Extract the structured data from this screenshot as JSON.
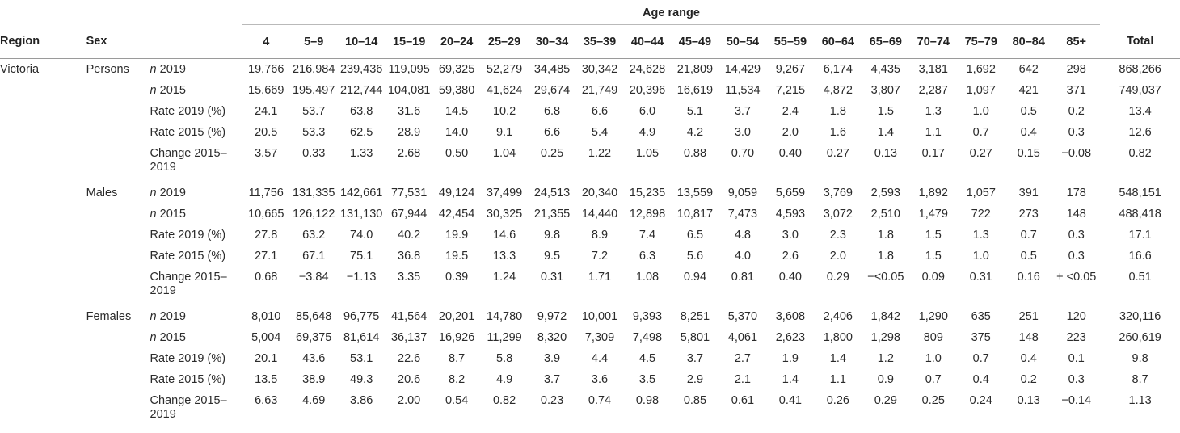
{
  "header": {
    "region": "Region",
    "sex": "Sex",
    "age_range": "Age range",
    "age_groups": [
      "4",
      "5–9",
      "10–14",
      "15–19",
      "20–24",
      "25–29",
      "30–34",
      "35–39",
      "40–44",
      "45–49",
      "50–54",
      "55–59",
      "60–64",
      "65–69",
      "70–74",
      "75–79",
      "80–84",
      "85+"
    ],
    "total": "Total"
  },
  "rows": [
    {
      "region": "Victoria",
      "sex": "Persons",
      "label_prefix": "n",
      "label": " 2019",
      "values": [
        "19,766",
        "216,984",
        "239,436",
        "119,095",
        "69,325",
        "52,279",
        "34,485",
        "30,342",
        "24,628",
        "21,809",
        "14,429",
        "9,267",
        "6,174",
        "4,435",
        "3,181",
        "1,692",
        "642",
        "298"
      ],
      "total": "868,266"
    },
    {
      "region": "",
      "sex": "",
      "label_prefix": "n",
      "label": " 2015",
      "values": [
        "15,669",
        "195,497",
        "212,744",
        "104,081",
        "59,380",
        "41,624",
        "29,674",
        "21,749",
        "20,396",
        "16,619",
        "11,534",
        "7,215",
        "4,872",
        "3,807",
        "2,287",
        "1,097",
        "421",
        "371"
      ],
      "total": "749,037"
    },
    {
      "region": "",
      "sex": "",
      "label_prefix": "",
      "label": "Rate 2019 (%)",
      "values": [
        "24.1",
        "53.7",
        "63.8",
        "31.6",
        "14.5",
        "10.2",
        "6.8",
        "6.6",
        "6.0",
        "5.1",
        "3.7",
        "2.4",
        "1.8",
        "1.5",
        "1.3",
        "1.0",
        "0.5",
        "0.2"
      ],
      "total": "13.4"
    },
    {
      "region": "",
      "sex": "",
      "label_prefix": "",
      "label": "Rate 2015 (%)",
      "values": [
        "20.5",
        "53.3",
        "62.5",
        "28.9",
        "14.0",
        "9.1",
        "6.6",
        "5.4",
        "4.9",
        "4.2",
        "3.0",
        "2.0",
        "1.6",
        "1.4",
        "1.1",
        "0.7",
        "0.4",
        "0.3"
      ],
      "total": "12.6"
    },
    {
      "region": "",
      "sex": "",
      "label_prefix": "",
      "label": "Change 2015–2019",
      "values": [
        "3.57",
        "0.33",
        "1.33",
        "2.68",
        "0.50",
        "1.04",
        "0.25",
        "1.22",
        "1.05",
        "0.88",
        "0.70",
        "0.40",
        "0.27",
        "0.13",
        "0.17",
        "0.27",
        "0.15",
        "−0.08"
      ],
      "total": "0.82"
    },
    {
      "region": "",
      "sex": "Males",
      "label_prefix": "n",
      "label": " 2019",
      "values": [
        "11,756",
        "131,335",
        "142,661",
        "77,531",
        "49,124",
        "37,499",
        "24,513",
        "20,340",
        "15,235",
        "13,559",
        "9,059",
        "5,659",
        "3,769",
        "2,593",
        "1,892",
        "1,057",
        "391",
        "178"
      ],
      "total": "548,151"
    },
    {
      "region": "",
      "sex": "",
      "label_prefix": "n",
      "label": " 2015",
      "values": [
        "10,665",
        "126,122",
        "131,130",
        "67,944",
        "42,454",
        "30,325",
        "21,355",
        "14,440",
        "12,898",
        "10,817",
        "7,473",
        "4,593",
        "3,072",
        "2,510",
        "1,479",
        "722",
        "273",
        "148"
      ],
      "total": "488,418"
    },
    {
      "region": "",
      "sex": "",
      "label_prefix": "",
      "label": "Rate 2019 (%)",
      "values": [
        "27.8",
        "63.2",
        "74.0",
        "40.2",
        "19.9",
        "14.6",
        "9.8",
        "8.9",
        "7.4",
        "6.5",
        "4.8",
        "3.0",
        "2.3",
        "1.8",
        "1.5",
        "1.3",
        "0.7",
        "0.3"
      ],
      "total": "17.1"
    },
    {
      "region": "",
      "sex": "",
      "label_prefix": "",
      "label": "Rate 2015 (%)",
      "values": [
        "27.1",
        "67.1",
        "75.1",
        "36.8",
        "19.5",
        "13.3",
        "9.5",
        "7.2",
        "6.3",
        "5.6",
        "4.0",
        "2.6",
        "2.0",
        "1.8",
        "1.5",
        "1.0",
        "0.5",
        "0.3"
      ],
      "total": "16.6"
    },
    {
      "region": "",
      "sex": "",
      "label_prefix": "",
      "label": "Change 2015–2019",
      "values": [
        "0.68",
        "−3.84",
        "−1.13",
        "3.35",
        "0.39",
        "1.24",
        "0.31",
        "1.71",
        "1.08",
        "0.94",
        "0.81",
        "0.40",
        "0.29",
        "−<0.05",
        "0.09",
        "0.31",
        "0.16",
        "+ <0.05"
      ],
      "total": "0.51"
    },
    {
      "region": "",
      "sex": "Females",
      "label_prefix": "n",
      "label": " 2019",
      "values": [
        "8,010",
        "85,648",
        "96,775",
        "41,564",
        "20,201",
        "14,780",
        "9,972",
        "10,001",
        "9,393",
        "8,251",
        "5,370",
        "3,608",
        "2,406",
        "1,842",
        "1,290",
        "635",
        "251",
        "120"
      ],
      "total": "320,116"
    },
    {
      "region": "",
      "sex": "",
      "label_prefix": "n",
      "label": " 2015",
      "values": [
        "5,004",
        "69,375",
        "81,614",
        "36,137",
        "16,926",
        "11,299",
        "8,320",
        "7,309",
        "7,498",
        "5,801",
        "4,061",
        "2,623",
        "1,800",
        "1,298",
        "809",
        "375",
        "148",
        "223"
      ],
      "total": "260,619"
    },
    {
      "region": "",
      "sex": "",
      "label_prefix": "",
      "label": "Rate 2019 (%)",
      "values": [
        "20.1",
        "43.6",
        "53.1",
        "22.6",
        "8.7",
        "5.8",
        "3.9",
        "4.4",
        "4.5",
        "3.7",
        "2.7",
        "1.9",
        "1.4",
        "1.2",
        "1.0",
        "0.7",
        "0.4",
        "0.1"
      ],
      "total": "9.8"
    },
    {
      "region": "",
      "sex": "",
      "label_prefix": "",
      "label": "Rate 2015 (%)",
      "values": [
        "13.5",
        "38.9",
        "49.3",
        "20.6",
        "8.2",
        "4.9",
        "3.7",
        "3.6",
        "3.5",
        "2.9",
        "2.1",
        "1.4",
        "1.1",
        "0.9",
        "0.7",
        "0.4",
        "0.2",
        "0.3"
      ],
      "total": "8.7"
    },
    {
      "region": "",
      "sex": "",
      "label_prefix": "",
      "label": "Change 2015–2019",
      "values": [
        "6.63",
        "4.69",
        "3.86",
        "2.00",
        "0.54",
        "0.82",
        "0.23",
        "0.74",
        "0.98",
        "0.85",
        "0.61",
        "0.41",
        "0.26",
        "0.29",
        "0.25",
        "0.24",
        "0.13",
        "−0.14"
      ],
      "total": "1.13"
    }
  ]
}
